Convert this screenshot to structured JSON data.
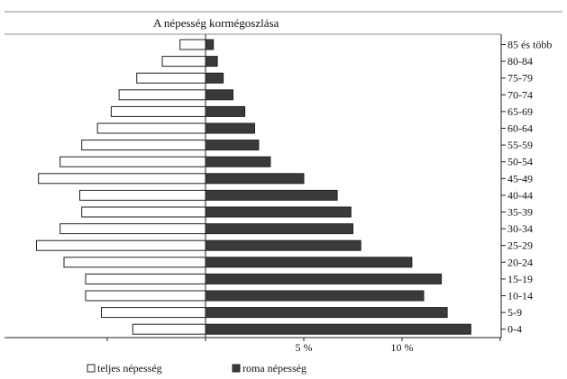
{
  "chart_data": {
    "type": "bar",
    "orientation": "horizontal",
    "layout": "population-pyramid",
    "title": "A népesség kormégoszlása",
    "categories": [
      "0-4",
      "5-9",
      "10-14",
      "15-19",
      "20-24",
      "25-29",
      "30-34",
      "35-39",
      "40-44",
      "45-49",
      "50-54",
      "55-59",
      "60-64",
      "65-69",
      "70-74",
      "75-79",
      "80-84",
      "85 és több"
    ],
    "series": [
      {
        "name": "teljes népesség",
        "side": "left",
        "fill": "#ffffff",
        "values": [
          3.7,
          5.3,
          6.1,
          6.1,
          7.2,
          8.6,
          7.4,
          6.3,
          6.4,
          8.5,
          7.4,
          6.3,
          5.5,
          4.8,
          4.4,
          3.5,
          2.2,
          1.3
        ]
      },
      {
        "name": "roma népesség",
        "side": "right",
        "fill": "#3a3a3a",
        "values": [
          13.5,
          12.3,
          11.1,
          12.0,
          10.5,
          7.9,
          7.5,
          7.4,
          6.7,
          5.0,
          3.3,
          2.7,
          2.5,
          2.0,
          1.4,
          0.9,
          0.6,
          0.4
        ]
      }
    ],
    "xaxis_ticks": [
      {
        "value": 5,
        "label": "5 %"
      },
      {
        "value": 10,
        "label": "10 %"
      }
    ],
    "xlim": [
      -10,
      15
    ],
    "grid": false,
    "legend_position": "bottom-left"
  }
}
